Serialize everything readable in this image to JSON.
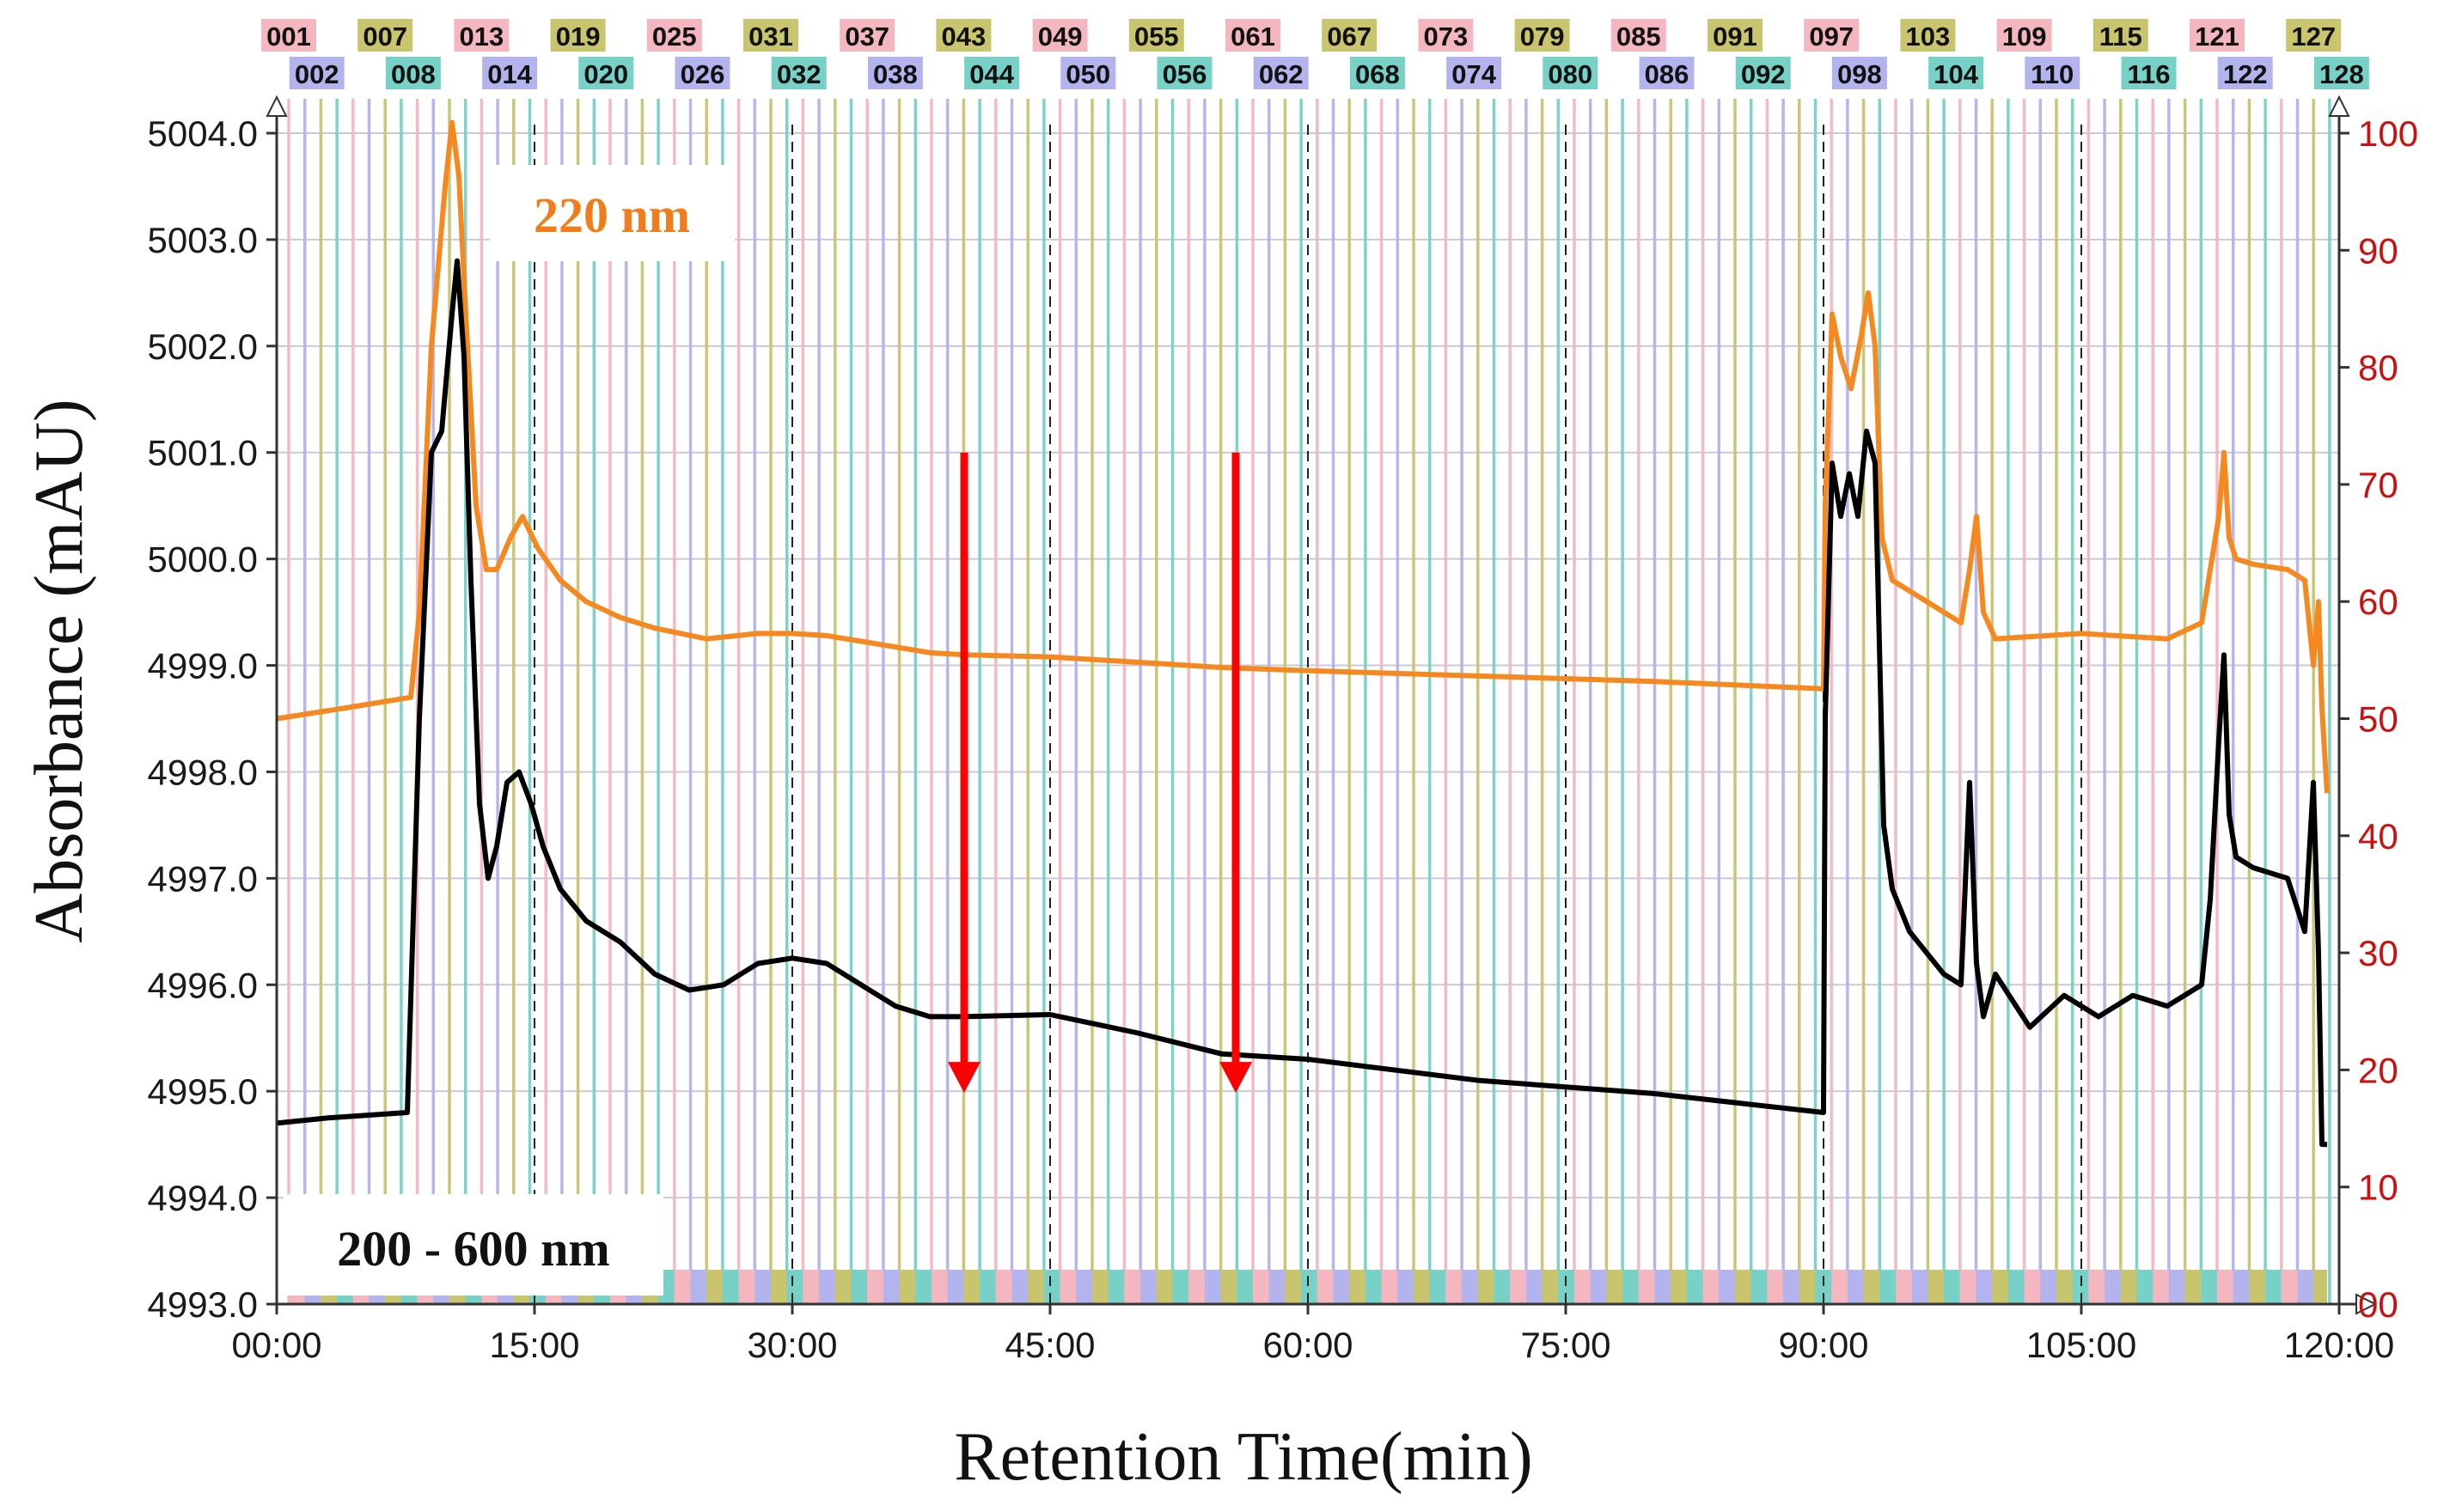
{
  "chart_data": {
    "type": "line",
    "xlabel": "Retention Time(min)",
    "ylabel": "Absorbance (mAU)",
    "xlim": [
      0,
      120
    ],
    "ylim_left": [
      4993.0,
      5004.0
    ],
    "ylim_right": [
      0,
      100
    ],
    "x_tick_values": [
      0,
      15,
      30,
      45,
      60,
      75,
      90,
      105,
      120
    ],
    "x_tick_labels": [
      "00:00",
      "15:00",
      "30:00",
      "45:00",
      "60:00",
      "75:00",
      "90:00",
      "105:00",
      "120:00"
    ],
    "y_left_ticks": [
      4993.0,
      4994.0,
      4995.0,
      4996.0,
      4997.0,
      4998.0,
      4999.0,
      5000.0,
      5001.0,
      5002.0,
      5003.0,
      5004.0
    ],
    "y_left_tick_labels": [
      "4993.0",
      "4994.0",
      "4995.0",
      "4996.0",
      "4997.0",
      "4998.0",
      "4999.0",
      "5000.0",
      "5001.0",
      "5002.0",
      "5003.0",
      "5004.0"
    ],
    "y_right_ticks": [
      0,
      10,
      20,
      30,
      40,
      50,
      60,
      70,
      80,
      90,
      100
    ],
    "y_right_tick_labels": [
      "00",
      "10",
      "20",
      "30",
      "40",
      "50",
      "60",
      "70",
      "80",
      "90",
      "100"
    ],
    "grid": true,
    "colors": {
      "series_220": "#f5891f",
      "series_200_600": "#000000",
      "right_axis": "#cc1010",
      "arrow": "#ff0000",
      "fraction_palette": [
        "#f4b7bf",
        "#b3b3ee",
        "#c9c46e",
        "#78d1c6"
      ]
    },
    "series": [
      {
        "name": "220 nm",
        "x": [
          0,
          4,
          7.8,
          8.3,
          9,
          9.8,
          10.2,
          10.6,
          11,
          11.6,
          12.2,
          12.8,
          13.6,
          14.3,
          15.2,
          16.5,
          18,
          20,
          22,
          25,
          28,
          30,
          32,
          35,
          38,
          40,
          45,
          50,
          55,
          60,
          70,
          80,
          90,
          90.1,
          90.5,
          91,
          91.6,
          92.2,
          92.6,
          93,
          93.4,
          94,
          95,
          96,
          97,
          98,
          98.5,
          98.9,
          99.3,
          100,
          105,
          110,
          112,
          112.5,
          113,
          113.3,
          113.6,
          114,
          115,
          117,
          118,
          118.5,
          118.8,
          119,
          119.3
        ],
        "values": [
          4998.5,
          4998.6,
          4998.7,
          4999.5,
          5002.0,
          5003.5,
          5004.1,
          5003.6,
          5002.3,
          5000.5,
          4999.9,
          4999.9,
          5000.2,
          5000.4,
          5000.1,
          4999.8,
          4999.6,
          4999.45,
          4999.35,
          4999.25,
          4999.3,
          4999.3,
          4999.28,
          4999.2,
          4999.12,
          4999.1,
          4999.08,
          4999.03,
          4998.98,
          4998.95,
          4998.9,
          4998.85,
          4998.78,
          5000.5,
          5002.3,
          5001.9,
          5001.6,
          5002.1,
          5002.5,
          5002.0,
          5000.2,
          4999.8,
          4999.7,
          4999.6,
          4999.5,
          4999.4,
          4999.9,
          5000.4,
          4999.5,
          4999.25,
          4999.3,
          4999.25,
          4999.4,
          4999.9,
          5000.4,
          5001.0,
          5000.2,
          5000.0,
          4999.95,
          4999.9,
          4999.8,
          4999.0,
          4999.6,
          4998.6,
          4997.8
        ]
      },
      {
        "name": "200 - 600 nm",
        "x": [
          0,
          3,
          7.6,
          8.3,
          9,
          9.6,
          10.2,
          10.5,
          10.9,
          11.3,
          11.8,
          12.3,
          12.8,
          13.4,
          14.1,
          14.8,
          15.5,
          16.5,
          18,
          20,
          22,
          24,
          26,
          28,
          30,
          32,
          34,
          36,
          38,
          40,
          45,
          50,
          55,
          60,
          70,
          80,
          90,
          90.1,
          90.5,
          91,
          91.5,
          92,
          92.5,
          93,
          93.5,
          94,
          95,
          96,
          97,
          98,
          98.5,
          98.9,
          99.3,
          100,
          102,
          104,
          106,
          108,
          110,
          112,
          112.5,
          113,
          113.3,
          113.6,
          114,
          115,
          117,
          118,
          118.5,
          118.8,
          119,
          119.3
        ],
        "values": [
          4994.7,
          4994.75,
          4994.8,
          4998.5,
          5001.0,
          5001.2,
          5002.3,
          5002.8,
          5001.9,
          4999.8,
          4997.7,
          4997.0,
          4997.3,
          4997.9,
          4998.0,
          4997.7,
          4997.3,
          4996.9,
          4996.6,
          4996.4,
          4996.1,
          4995.95,
          4996.0,
          4996.2,
          4996.25,
          4996.2,
          4996.0,
          4995.8,
          4995.7,
          4995.7,
          4995.72,
          4995.55,
          4995.35,
          4995.3,
          4995.1,
          4994.98,
          4994.8,
          4998.5,
          5000.9,
          5000.4,
          5000.8,
          5000.4,
          5001.2,
          5000.9,
          4997.5,
          4996.9,
          4996.5,
          4996.3,
          4996.1,
          4996.0,
          4997.9,
          4996.2,
          4995.7,
          4996.1,
          4995.6,
          4995.9,
          4995.7,
          4995.9,
          4995.8,
          4996.0,
          4996.8,
          4998.3,
          4999.1,
          4997.6,
          4997.2,
          4997.1,
          4997.0,
          4996.5,
          4997.9,
          4996.3,
          4994.5,
          4994.5
        ]
      }
    ],
    "annotations": {
      "label_220": "220 nm",
      "label_200_600": "200 - 600 nm",
      "arrows": [
        {
          "x": 40,
          "from": 5001.0,
          "to": 4995.0
        },
        {
          "x": 55.8,
          "from": 5001.0,
          "to": 4995.0
        }
      ],
      "dashed_markers_x": [
        15,
        30,
        45,
        60,
        75,
        90,
        105
      ]
    },
    "fractions": {
      "top_row": [
        "001",
        "007",
        "013",
        "019",
        "025",
        "031",
        "037",
        "043",
        "049",
        "055",
        "061",
        "067",
        "073",
        "079",
        "085",
        "091",
        "097",
        "103",
        "109",
        "115",
        "121",
        "127"
      ],
      "bottom_row": [
        "002",
        "008",
        "014",
        "020",
        "026",
        "032",
        "038",
        "044",
        "050",
        "056",
        "062",
        "068",
        "074",
        "080",
        "086",
        "092",
        "098",
        "104",
        "110",
        "116",
        "122",
        "128"
      ]
    }
  }
}
